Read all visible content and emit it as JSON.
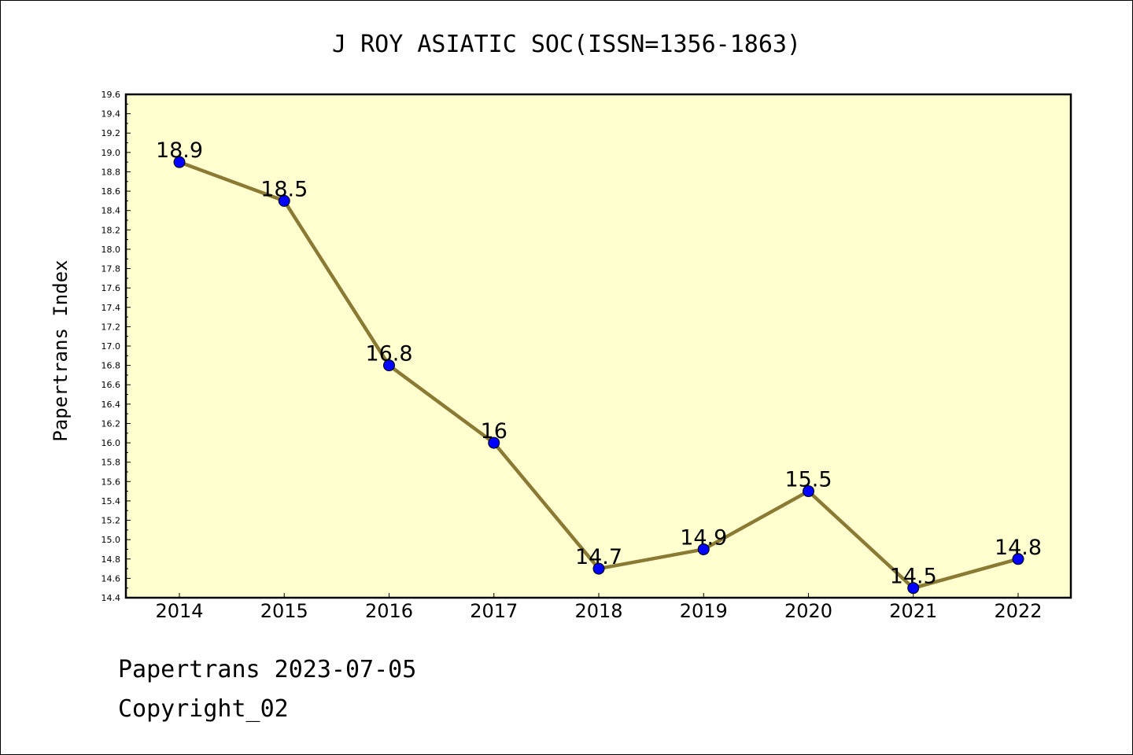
{
  "chart_data": {
    "type": "line",
    "title": "J ROY ASIATIC SOC(ISSN=1356-1863)",
    "ylabel": "Papertrans Index",
    "xlabel": "",
    "categories": [
      "2014",
      "2015",
      "2016",
      "2017",
      "2018",
      "2019",
      "2020",
      "2021",
      "2022"
    ],
    "values": [
      18.9,
      18.5,
      16.8,
      16.0,
      14.7,
      14.9,
      15.5,
      14.5,
      14.8
    ],
    "data_labels": [
      "18.9",
      "18.5",
      "16.8",
      "16",
      "14.7",
      "14.9",
      "15.5",
      "14.5",
      "14.8"
    ],
    "ylim": [
      14.4,
      19.6
    ],
    "ytick_step": 0.2,
    "grid": false,
    "legend": "none",
    "line_color": "#8b7a34",
    "marker_color": "#0000ff",
    "plot_background": "#ffffd0"
  },
  "footer": {
    "date_line": "Papertrans 2023-07-05",
    "copyright": "Copyright_02"
  }
}
